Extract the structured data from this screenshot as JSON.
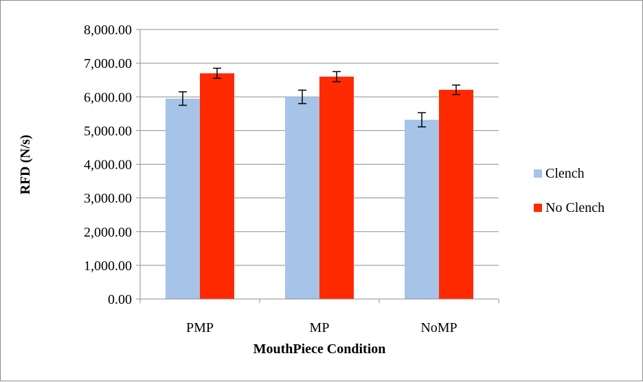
{
  "chart_data": {
    "type": "bar",
    "title": "",
    "xlabel": "MouthPiece Condition",
    "ylabel": "RFD (N/s)",
    "categories": [
      "PMP",
      "MP",
      "NoMP"
    ],
    "ylim": [
      0,
      8000
    ],
    "yticks": [
      0,
      1000,
      2000,
      3000,
      4000,
      5000,
      6000,
      7000,
      8000
    ],
    "ytick_labels": [
      "0.00",
      "1,000.00",
      "2,000.00",
      "3,000.00",
      "4,000.00",
      "5,000.00",
      "6,000.00",
      "7,000.00",
      "8,000.00"
    ],
    "grid": true,
    "legend_position": "right",
    "series": [
      {
        "name": "Clench",
        "color": "#a6c3e8",
        "values": [
          5950,
          6000,
          5320
        ],
        "errors": [
          200,
          200,
          210
        ]
      },
      {
        "name": "No Clench",
        "color": "#ff2a00",
        "values": [
          6700,
          6600,
          6210
        ],
        "errors": [
          150,
          150,
          140
        ]
      }
    ]
  }
}
